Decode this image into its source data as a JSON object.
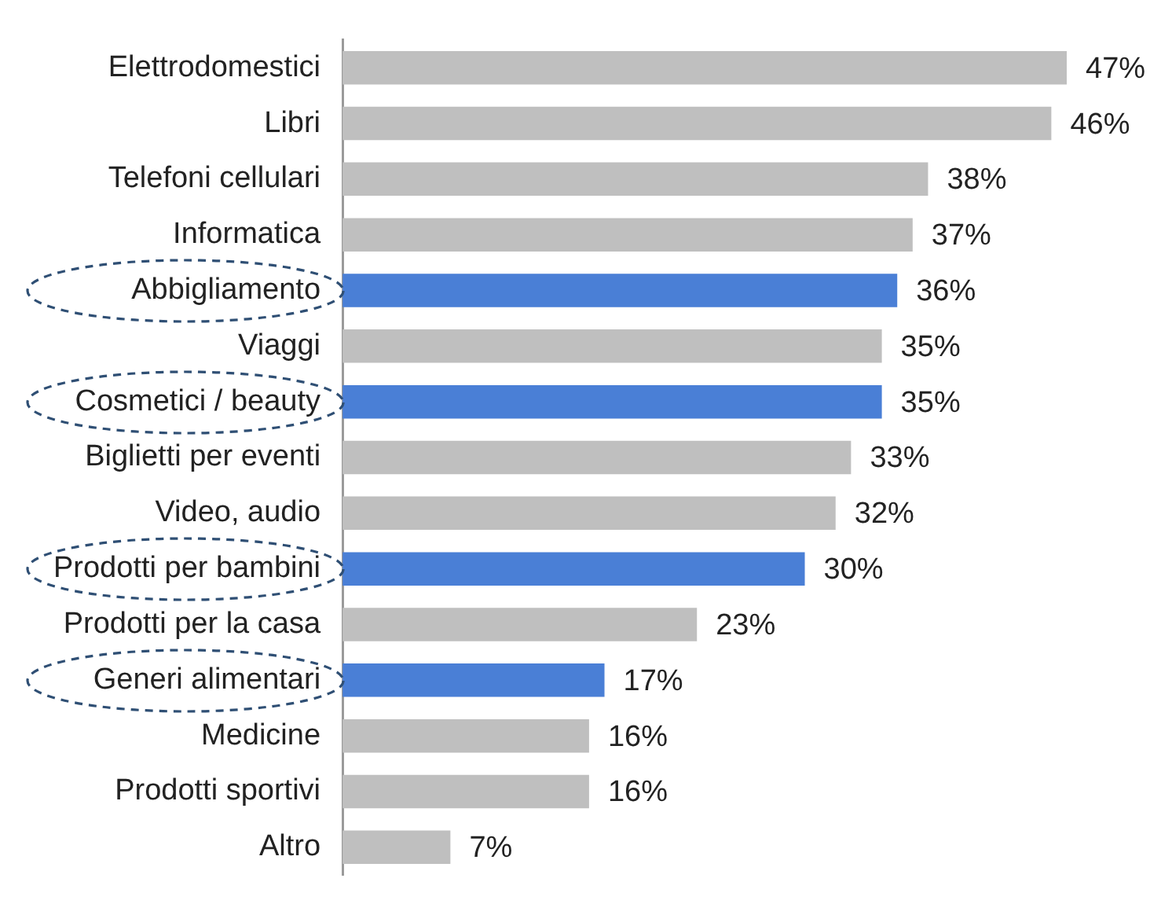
{
  "chart_data": {
    "type": "bar",
    "orientation": "horizontal",
    "categories": [
      "Elettrodomestici",
      "Libri",
      "Telefoni cellulari",
      "Informatica",
      "Abbigliamento",
      "Viaggi",
      "Cosmetici / beauty",
      "Biglietti per eventi",
      "Video, audio",
      "Prodotti per bambini",
      "Prodotti per la casa",
      "Generi alimentari",
      "Medicine",
      "Prodotti sportivi",
      "Altro"
    ],
    "values": [
      47,
      46,
      38,
      37,
      36,
      35,
      35,
      33,
      32,
      30,
      23,
      17,
      16,
      16,
      7
    ],
    "colors": [
      "#bfbfbf",
      "#bfbfbf",
      "#bfbfbf",
      "#bfbfbf",
      "#4a7fd6",
      "#bfbfbf",
      "#4a7fd6",
      "#bfbfbf",
      "#bfbfbf",
      "#4a7fd6",
      "#bfbfbf",
      "#4a7fd6",
      "#bfbfbf",
      "#bfbfbf",
      "#bfbfbf"
    ],
    "value_labels": [
      "47%",
      "46%",
      "38%",
      "37%",
      "36%",
      "35%",
      "35%",
      "33%",
      "32%",
      "30%",
      "23%",
      "17%",
      "16%",
      "16%",
      "7%"
    ],
    "xlim": [
      0,
      47
    ],
    "tick_labels": "y"
  }
}
